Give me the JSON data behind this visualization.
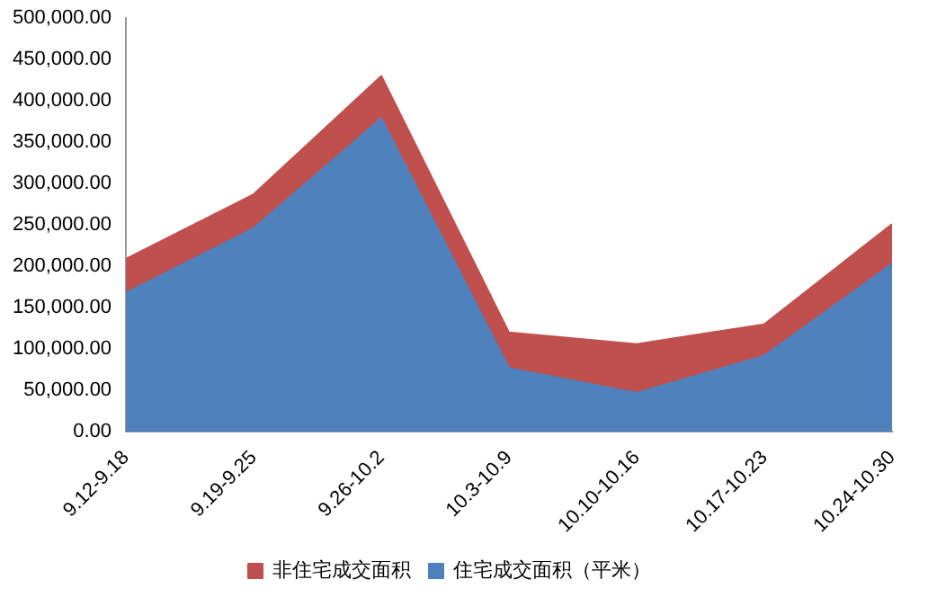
{
  "chart_data": {
    "type": "area",
    "stacked": true,
    "categories": [
      "9.12-9.18",
      "9.19-9.25",
      "9.26-10.2",
      "10.3-10.9",
      "10.10-10.16",
      "10.17-10.23",
      "10.24-10.30"
    ],
    "series": [
      {
        "name": "住宅成交面积（平米）",
        "color": "#4f81bd",
        "values": [
          168000,
          246000,
          379000,
          77000,
          47000,
          92000,
          203000
        ]
      },
      {
        "name": "非住宅成交面积",
        "color": "#c0504d",
        "values": [
          41000,
          41000,
          51000,
          43000,
          59000,
          38000,
          48000
        ]
      }
    ],
    "ylim": [
      0,
      500000
    ],
    "yticks": [
      {
        "value": 0,
        "label": "0.00"
      },
      {
        "value": 50000,
        "label": "50,000.00"
      },
      {
        "value": 100000,
        "label": "100,000.00"
      },
      {
        "value": 150000,
        "label": "150,000.00"
      },
      {
        "value": 200000,
        "label": "200,000.00"
      },
      {
        "value": 250000,
        "label": "250,000.00"
      },
      {
        "value": 300000,
        "label": "300,000.00"
      },
      {
        "value": 350000,
        "label": "350,000.00"
      },
      {
        "value": 400000,
        "label": "400,000.00"
      },
      {
        "value": 450000,
        "label": "450,000.00"
      },
      {
        "value": 500000,
        "label": "500,000.00"
      }
    ],
    "grid": false,
    "legend": "bottom"
  }
}
